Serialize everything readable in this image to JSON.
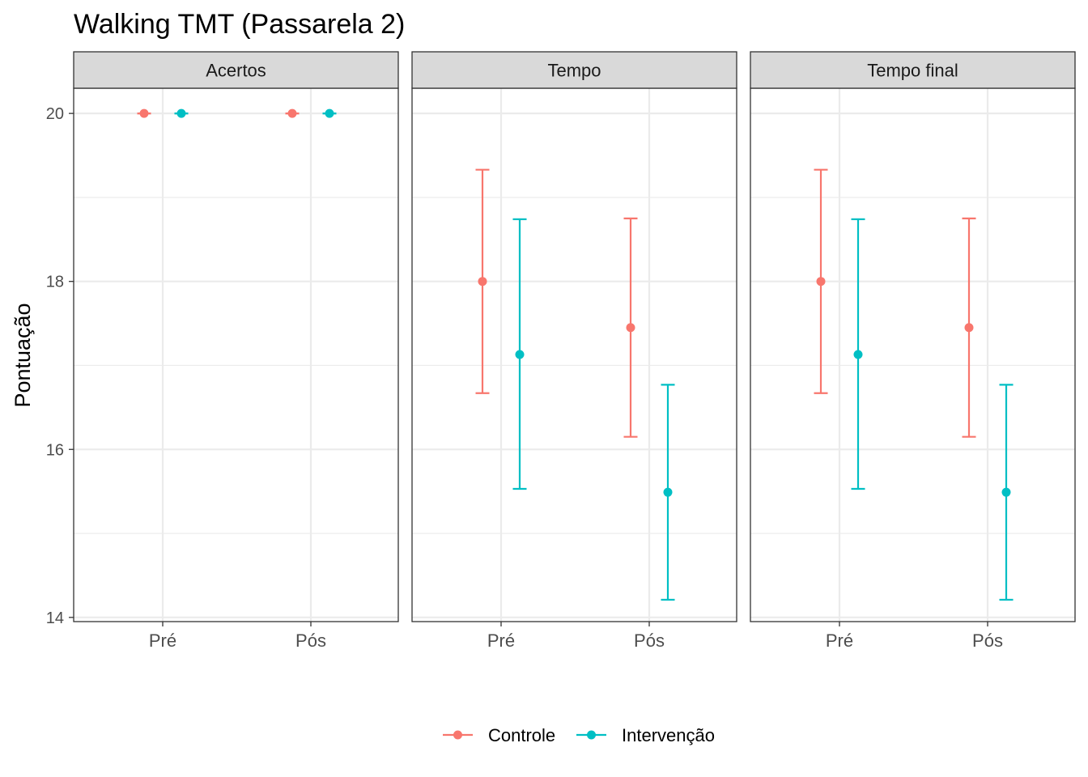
{
  "chart_data": {
    "type": "errorbar",
    "title": "Walking TMT (Passarela 2)",
    "ylabel": "Pontuação",
    "xlabel": "",
    "ylim": [
      13.95,
      20.3
    ],
    "yticks": [
      14,
      16,
      18,
      20
    ],
    "categories": [
      "Pré",
      "Pós"
    ],
    "grid": true,
    "legend_position": "bottom",
    "legend_labels": [
      "Controle",
      "Intervenção"
    ],
    "colors": {
      "Controle": "#F8766D",
      "Intervenção": "#00BFC4"
    },
    "panels": [
      {
        "label": "Acertos",
        "series": [
          {
            "name": "Controle",
            "points": [
              {
                "x": "Pré",
                "y": 20,
                "ymin": 20,
                "ymax": 20
              },
              {
                "x": "Pós",
                "y": 20,
                "ymin": 20,
                "ymax": 20
              }
            ]
          },
          {
            "name": "Intervenção",
            "points": [
              {
                "x": "Pré",
                "y": 20,
                "ymin": 20,
                "ymax": 20
              },
              {
                "x": "Pós",
                "y": 20,
                "ymin": 20,
                "ymax": 20
              }
            ]
          }
        ]
      },
      {
        "label": "Tempo",
        "series": [
          {
            "name": "Controle",
            "points": [
              {
                "x": "Pré",
                "y": 18.0,
                "ymin": 16.67,
                "ymax": 19.33
              },
              {
                "x": "Pós",
                "y": 17.45,
                "ymin": 16.15,
                "ymax": 18.75
              }
            ]
          },
          {
            "name": "Intervenção",
            "points": [
              {
                "x": "Pré",
                "y": 17.13,
                "ymin": 15.53,
                "ymax": 18.74
              },
              {
                "x": "Pós",
                "y": 15.49,
                "ymin": 14.21,
                "ymax": 16.77
              }
            ]
          }
        ]
      },
      {
        "label": "Tempo final",
        "series": [
          {
            "name": "Controle",
            "points": [
              {
                "x": "Pré",
                "y": 18.0,
                "ymin": 16.67,
                "ymax": 19.33
              },
              {
                "x": "Pós",
                "y": 17.45,
                "ymin": 16.15,
                "ymax": 18.75
              }
            ]
          },
          {
            "name": "Intervenção",
            "points": [
              {
                "x": "Pré",
                "y": 17.13,
                "ymin": 15.53,
                "ymax": 18.74
              },
              {
                "x": "Pós",
                "y": 15.49,
                "ymin": 14.21,
                "ymax": 16.77
              }
            ]
          }
        ]
      }
    ]
  }
}
